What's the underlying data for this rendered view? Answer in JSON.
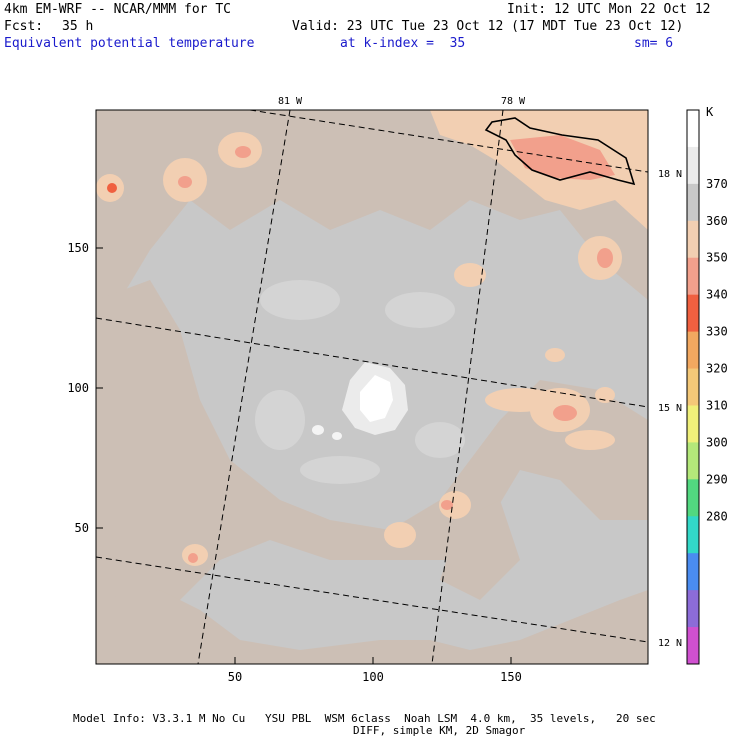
{
  "header": {
    "model": "4km EM-WRF -- NCAR/MMM for TC",
    "init": "Init: 12 UTC Mon 22 Oct 12",
    "fcst_label": "Fcst:",
    "fcst_value": "35 h",
    "valid": "Valid: 23 UTC Tue 23 Oct 12 (17 MDT Tue 23 Oct 12)",
    "field": "Equivalent potential temperature",
    "level": "at k-index =  35",
    "smooth": "sm= 6"
  },
  "map": {
    "x_ticks": [
      "50",
      "100",
      "150"
    ],
    "y_ticks": [
      "50",
      "100",
      "150"
    ],
    "lon_labels": [
      "81 W",
      "78 W"
    ],
    "lat_labels": [
      "18 N",
      "15 N",
      "12 N"
    ],
    "colors": {
      "background": "#c8c8c8",
      "warm": "#ccbfb5",
      "peach": "#f2cfb2",
      "salmon": "#f2a08c",
      "core": "#f0f0f0"
    }
  },
  "colorbar": {
    "unit": "K",
    "labels": [
      "370",
      "360",
      "350",
      "340",
      "330",
      "320",
      "310",
      "300",
      "290",
      "280"
    ],
    "colors": [
      "#ffffff",
      "#ebebeb",
      "#c8c8c8",
      "#f2cfb2",
      "#f2a08c",
      "#f06040",
      "#f2a860",
      "#f4c878",
      "#f0f07a",
      "#b4e87a",
      "#52d880",
      "#32d8c8",
      "#4a8cf0",
      "#8c6cd8",
      "#d050d0"
    ]
  },
  "footer": {
    "line1": "Model Info: V3.3.1 M No Cu   YSU PBL  WSM 6class  Noah LSM  4.0 km,  35 levels,   20 sec",
    "line2": "DIFF, simple KM, 2D Smagor"
  }
}
